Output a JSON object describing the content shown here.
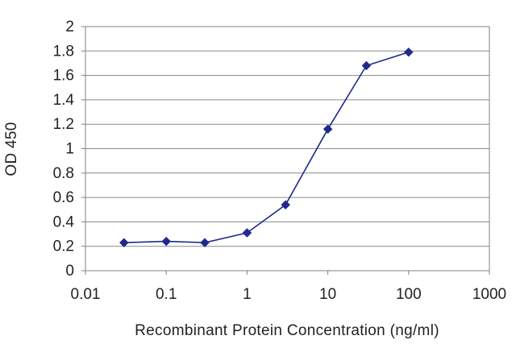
{
  "chart_data": {
    "type": "line",
    "title": "",
    "xlabel": "Recombinant Protein Concentration (ng/ml)",
    "ylabel": "OD 450",
    "x_scale": "log",
    "xlim": [
      0.01,
      1000
    ],
    "ylim": [
      0,
      2
    ],
    "x_ticks": [
      0.01,
      0.1,
      1,
      10,
      100,
      1000
    ],
    "x_tick_labels": [
      "0.01",
      "0.1",
      "1",
      "10",
      "100",
      "1000"
    ],
    "y_ticks": [
      0,
      0.2,
      0.4,
      0.6,
      0.8,
      1,
      1.2,
      1.4,
      1.6,
      1.8,
      2
    ],
    "y_tick_labels": [
      "0",
      "0.2",
      "0.4",
      "0.6",
      "0.8",
      "1",
      "1.2",
      "1.4",
      "1.6",
      "1.8",
      "2"
    ],
    "grid": "horizontal",
    "legend": "none",
    "series": [
      {
        "x": [
          0.03,
          0.1,
          0.3,
          1,
          3,
          10,
          30,
          100
        ],
        "values": [
          0.23,
          0.24,
          0.23,
          0.31,
          0.54,
          1.16,
          1.68,
          1.79
        ],
        "color": "#1f2a8c"
      }
    ]
  }
}
